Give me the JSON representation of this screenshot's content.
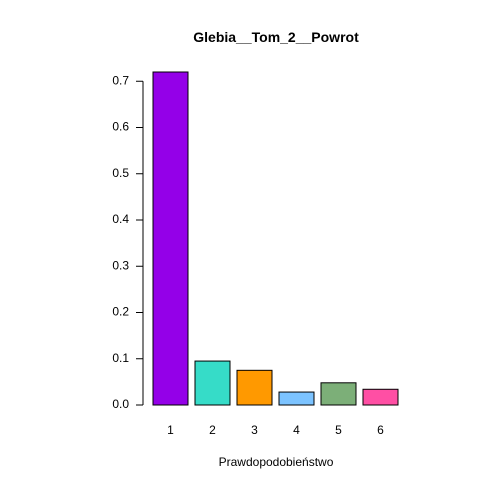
{
  "chart_data": {
    "type": "bar",
    "title": "Glebia__Tom_2__Powrot",
    "xlabel": "Prawdopodobieństwo",
    "ylabel": "",
    "categories": [
      "1",
      "2",
      "3",
      "4",
      "5",
      "6"
    ],
    "values": [
      0.72,
      0.095,
      0.075,
      0.028,
      0.048,
      0.034
    ],
    "colors": [
      "#9400E8",
      "#36DCC8",
      "#FF9900",
      "#7CC3FF",
      "#7CAF78",
      "#FF4FA4"
    ],
    "ylim": [
      0,
      0.72
    ],
    "yticks": [
      0.0,
      0.1,
      0.2,
      0.3,
      0.4,
      0.5,
      0.6,
      0.7
    ],
    "ytick_labels": [
      "0.0",
      "0.1",
      "0.2",
      "0.3",
      "0.4",
      "0.5",
      "0.6",
      "0.7"
    ],
    "grid": false,
    "legend": "none"
  }
}
